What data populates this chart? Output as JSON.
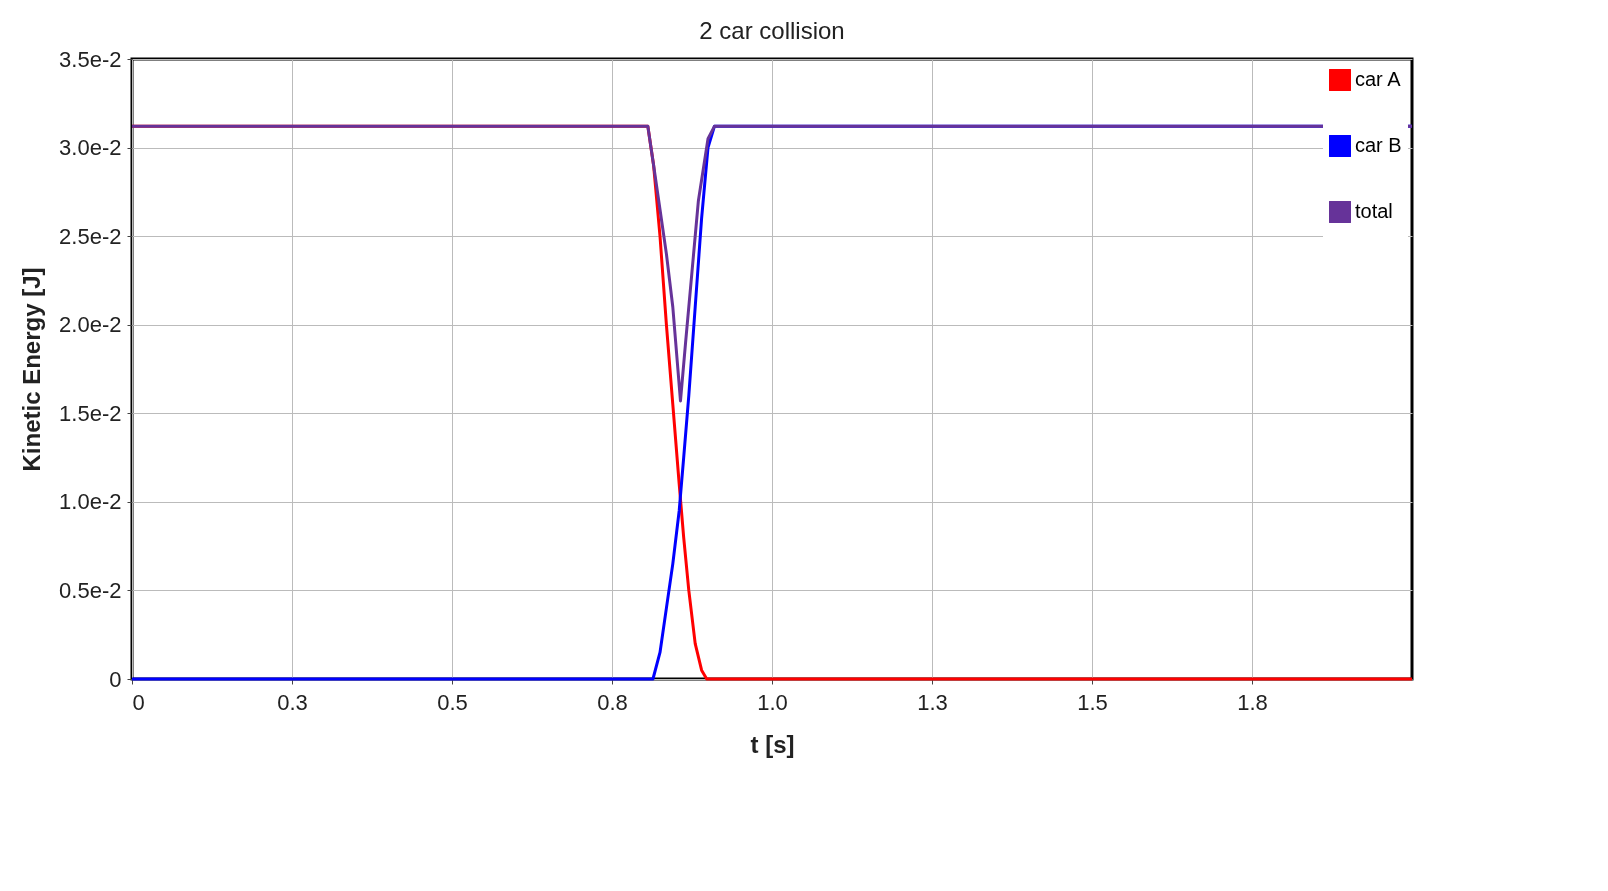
{
  "chart_data": {
    "type": "line",
    "title": "2 car collision",
    "xlabel": "t [s]",
    "ylabel": "Kinetic Energy [J]",
    "xlim": [
      0,
      2.0
    ],
    "ylim": [
      0,
      0.035
    ],
    "xticks": [
      0,
      {
        "value": 0.25,
        "label": "0.3"
      },
      0.5,
      {
        "value": 0.75,
        "label": "0.8"
      },
      {
        "value": 1.0,
        "label": "1.0"
      },
      {
        "value": 1.25,
        "label": "1.3"
      },
      1.5,
      {
        "value": 1.75,
        "label": "1.8"
      }
    ],
    "yticks": [
      0,
      {
        "value": 0.005,
        "label": "0.5e-2"
      },
      {
        "value": 0.01,
        "label": "1.0e-2"
      },
      {
        "value": 0.015,
        "label": "1.5e-2"
      },
      {
        "value": 0.02,
        "label": "2.0e-2"
      },
      {
        "value": 0.025,
        "label": "2.5e-2"
      },
      {
        "value": 0.03,
        "label": "3.0e-2"
      },
      {
        "value": 0.035,
        "label": "3.5e-2"
      }
    ],
    "grid": true,
    "legend": "top right",
    "marker": "none",
    "line_style": "solid",
    "series": [
      {
        "name": "car A",
        "color": "#ff0000",
        "x": [
          0,
          0.806,
          0.815,
          0.825,
          0.835,
          0.845,
          0.855,
          0.862,
          0.87,
          0.88,
          0.89,
          0.898,
          2.0
        ],
        "values": [
          0.0312,
          0.0312,
          0.029,
          0.025,
          0.02,
          0.0155,
          0.011,
          0.008,
          0.005,
          0.002,
          0.0005,
          0,
          0
        ]
      },
      {
        "name": "car B",
        "color": "#0000ff",
        "x": [
          0,
          0.814,
          0.825,
          0.835,
          0.845,
          0.855,
          0.862,
          0.87,
          0.88,
          0.89,
          0.9,
          0.91,
          2.0
        ],
        "values": [
          0,
          0,
          0.0015,
          0.004,
          0.0065,
          0.0095,
          0.0125,
          0.016,
          0.021,
          0.026,
          0.03,
          0.0312,
          0.0312
        ]
      },
      {
        "name": "total",
        "color": "#663399",
        "x": [
          0,
          0.806,
          0.815,
          0.825,
          0.835,
          0.845,
          0.857,
          0.865,
          0.875,
          0.885,
          0.9,
          0.91,
          2.0
        ],
        "values": [
          0.0312,
          0.0312,
          0.029,
          0.0265,
          0.024,
          0.021,
          0.0157,
          0.019,
          0.023,
          0.027,
          0.0305,
          0.0312,
          0.0312
        ]
      }
    ]
  }
}
